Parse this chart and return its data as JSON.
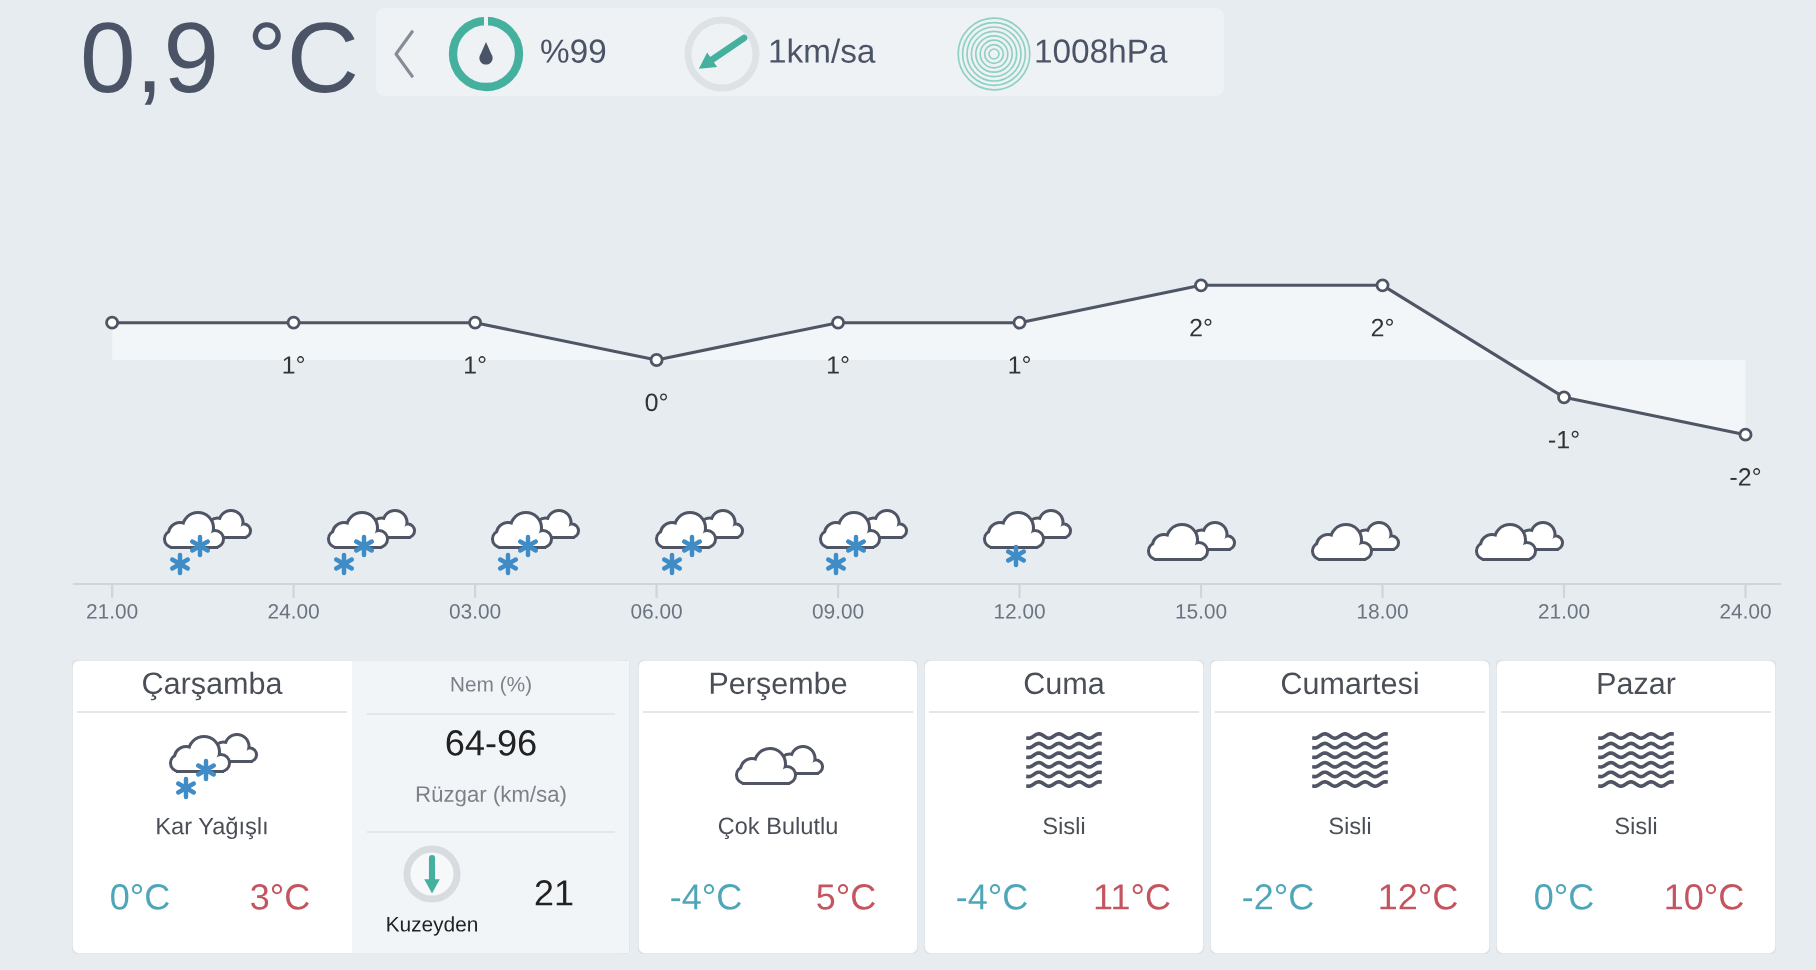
{
  "chart_data": [
    {
      "type": "other",
      "title": "0,9 °C",
      "annotations": [
        "%99",
        "1km/sa",
        "1008hPa"
      ]
    },
    {
      "type": "area",
      "categories": [
        "21.00",
        "24.00",
        "03.00",
        "06.00",
        "09.00",
        "12.00",
        "15.00",
        "18.00",
        "21.00",
        "24.00"
      ],
      "values": [
        1,
        1,
        1,
        0,
        1,
        1,
        2,
        2,
        -1,
        -2
      ],
      "value_labels": [
        null,
        "1°",
        "1°",
        "0°",
        "1°",
        "1°",
        "2°",
        "2°",
        "-1°",
        "-2°"
      ],
      "color": "#4f5564",
      "marker": "circle",
      "line_style": "solid"
    },
    {
      "type": "other",
      "title": "Çarşamba",
      "annotations": [
        "Kar Yağışlı",
        "0°C",
        "3°C",
        "Nem (%)",
        "64-96",
        "Rüzgar (km/sa)",
        "Kuzeyden",
        "21"
      ]
    },
    {
      "type": "other",
      "title": "Perşembe",
      "annotations": [
        "Çok Bulutlu",
        "-4°C",
        "5°C"
      ]
    },
    {
      "type": "other",
      "title": "Cuma",
      "annotations": [
        "Sisli",
        "-4°C",
        "11°C"
      ]
    },
    {
      "type": "other",
      "title": "Cumartesi",
      "annotations": [
        "Sisli",
        "-2°C",
        "12°C"
      ]
    },
    {
      "type": "other",
      "title": "Pazar",
      "annotations": [
        "Sisli",
        "0°C",
        "10°C"
      ]
    }
  ]
}
